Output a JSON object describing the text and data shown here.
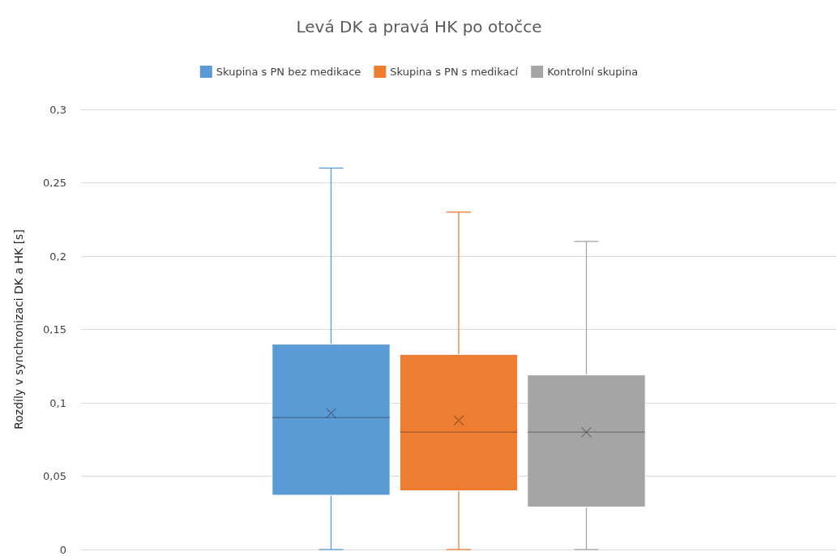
{
  "chart_data": {
    "type": "box",
    "title": "Levá DK a pravá HK po otočce",
    "ylabel": "Rozdíly v synchronizaci DK a HK [s]",
    "categories": [
      null
    ],
    "series": [
      {
        "name": "Skupina s PN bez medikace",
        "color": "#5b9bd5",
        "boxes": [
          {
            "low": 0,
            "q1": 0.037,
            "median": 0.09,
            "q3": 0.14,
            "high": 0.26,
            "mean": 0.093
          }
        ]
      },
      {
        "name": "Skupina s PN s medikací",
        "color": "#ed7d31",
        "boxes": [
          {
            "low": 0,
            "q1": 0.04,
            "median": 0.08,
            "q3": 0.133,
            "high": 0.23,
            "mean": 0.088
          }
        ]
      },
      {
        "name": "Kontrolní skupina",
        "color": "#a5a5a5",
        "boxes": [
          {
            "low": 0,
            "q1": 0.029,
            "median": 0.08,
            "q3": 0.119,
            "high": 0.21,
            "mean": 0.08
          }
        ]
      }
    ],
    "ylim": [
      0,
      0.3
    ],
    "yticks": [
      0,
      {
        "value": 0.05,
        "label": "0,05"
      },
      {
        "value": 0.1,
        "label": "0,1"
      },
      {
        "value": 0.15,
        "label": "0,15"
      },
      {
        "value": 0.2,
        "label": "0,2"
      },
      {
        "value": 0.25,
        "label": "0,25"
      },
      {
        "value": 0.3,
        "label": "0,3"
      }
    ],
    "grid": "y",
    "legend": "top"
  }
}
